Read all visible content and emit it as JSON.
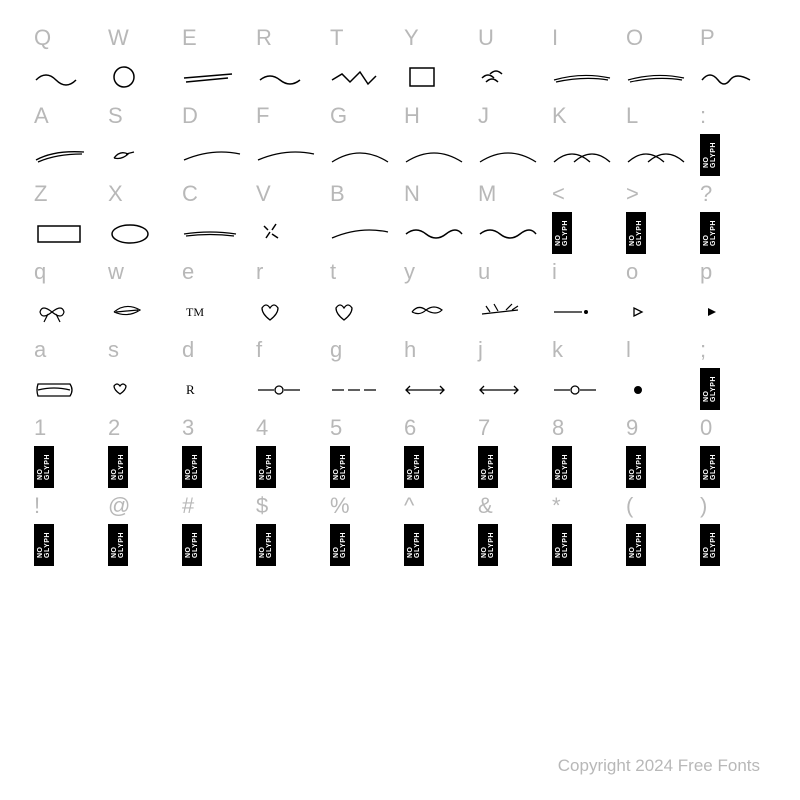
{
  "rows": [
    {
      "type": "labels",
      "items": [
        "Q",
        "W",
        "E",
        "R",
        "T",
        "Y",
        "U",
        "I",
        "O",
        "P"
      ]
    },
    {
      "type": "glyphs",
      "items": [
        "wave-small",
        "circle",
        "line-double",
        "tilde",
        "zigzag",
        "square-sketch",
        "leaf-marks",
        "long-scribble",
        "long-scribble",
        "wave-curl"
      ]
    },
    {
      "type": "labels",
      "items": [
        "A",
        "S",
        "D",
        "F",
        "G",
        "H",
        "J",
        "K",
        "L",
        ":"
      ]
    },
    {
      "type": "glyphs",
      "items": [
        "swoosh",
        "leaf-small",
        "swoosh-long",
        "swoosh-long",
        "arc-wide",
        "arc-wide",
        "arc-wide",
        "arc-multi",
        "arc-multi",
        "noglyph"
      ]
    },
    {
      "type": "labels",
      "items": [
        "Z",
        "X",
        "C",
        "V",
        "B",
        "N",
        "M",
        "<",
        ">",
        "?"
      ]
    },
    {
      "type": "glyphs",
      "items": [
        "rect-sketch",
        "oval-sketch",
        "underline",
        "burst",
        "swoosh-long",
        "wave",
        "wave",
        "noglyph",
        "noglyph",
        "noglyph"
      ]
    },
    {
      "type": "labels",
      "items": [
        "q",
        "w",
        "e",
        "r",
        "t",
        "y",
        "u",
        "i",
        "o",
        "p"
      ]
    },
    {
      "type": "glyphs",
      "items": [
        "bow",
        "leaf-outline",
        "tm",
        "heart",
        "heart-outline",
        "leaf-pair",
        "branch",
        "line-dot",
        "play-small",
        "play"
      ]
    },
    {
      "type": "labels",
      "items": [
        "a",
        "s",
        "d",
        "f",
        "g",
        "h",
        "j",
        "k",
        "l",
        ";"
      ]
    },
    {
      "type": "glyphs",
      "items": [
        "banner",
        "heart-small",
        "r-mark",
        "line-circle",
        "line-dash",
        "arrow-line",
        "arrow-line",
        "line-circle",
        "dot",
        "noglyph"
      ]
    },
    {
      "type": "labels",
      "items": [
        "1",
        "2",
        "3",
        "4",
        "5",
        "6",
        "7",
        "8",
        "9",
        "0"
      ]
    },
    {
      "type": "glyphs",
      "items": [
        "noglyph",
        "noglyph",
        "noglyph",
        "noglyph",
        "noglyph",
        "noglyph",
        "noglyph",
        "noglyph",
        "noglyph",
        "noglyph"
      ]
    },
    {
      "type": "labels",
      "items": [
        "!",
        "@",
        "#",
        "$",
        "%",
        "^",
        "&",
        "*",
        "(",
        ")"
      ]
    },
    {
      "type": "glyphs",
      "items": [
        "noglyph",
        "noglyph",
        "noglyph",
        "noglyph",
        "noglyph",
        "noglyph",
        "noglyph",
        "noglyph",
        "noglyph",
        "noglyph"
      ]
    }
  ],
  "noglyph_text": "NO GLYPH",
  "copyright": "Copyright 2024 Free Fonts",
  "colors": {
    "label": "#b8b8b8",
    "stroke": "#000000",
    "background": "#ffffff",
    "noglyph_bg": "#000000",
    "noglyph_fg": "#ffffff"
  }
}
